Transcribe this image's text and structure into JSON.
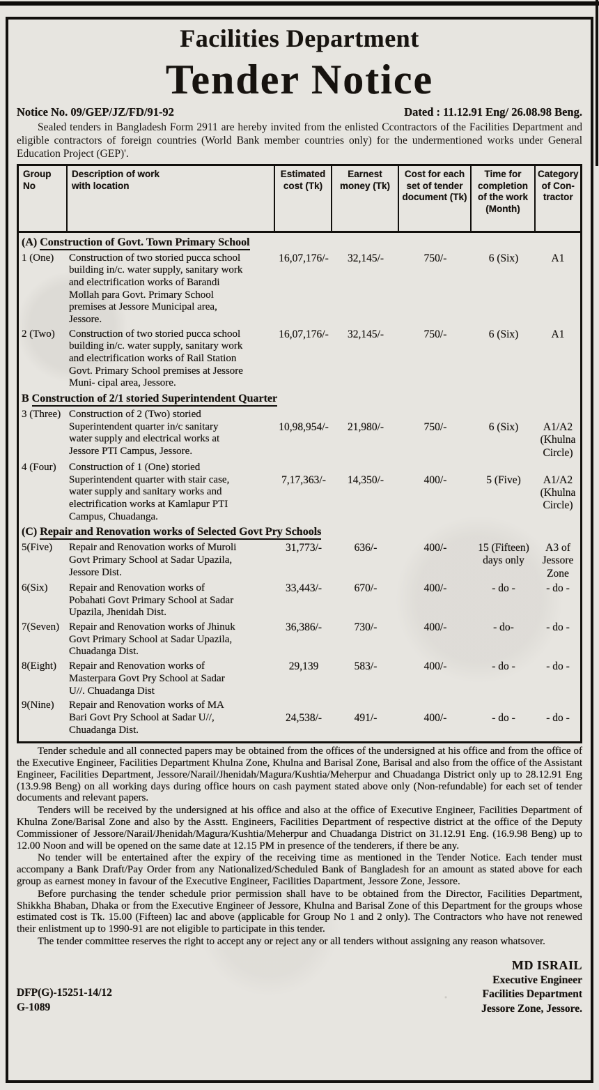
{
  "header": {
    "department": "Facilities Department",
    "title": "Tender Notice",
    "notice_no": "Notice No. 09/GEP/JZ/FD/91-92",
    "dated": "Dated : 11.12.91 Eng/ 26.08.98 Beng.",
    "intro": "Sealed tenders in Bangladesh Form 2911 are hereby invited from the enlisted Ccontractors of the Facilities Department and eligible contractors of foreign countries (World Bank member countries only) for the undermentioned works under General Education Project (GEP)'."
  },
  "table": {
    "headers": [
      "Group No",
      "Description of work with location",
      "Estimated cost (Tk)",
      "Earnest money (Tk)",
      "Cost for each set of tender document (Tk)",
      "Time for completion of the work (Month)",
      "Category of Con- tractor"
    ],
    "sections": [
      {
        "prefix": "(A)",
        "heading": "Construction of Govt. Town Primary School",
        "rows": [
          {
            "no": "1 (One)",
            "desc": "Construction of two storied pucca school building in/c. water supply, sanitary work and electrification works of Barandi Mollah para Govt. Primary School premises at Jessore Municipal area, Jessore.",
            "est": "16,07,176/-",
            "earnest": "32,145/-",
            "doc_cost": "750/-",
            "time": "6 (Six)",
            "category": "A1",
            "offset": false
          },
          {
            "no": "2 (Two)",
            "desc": "Construction of two storied pucca school building in/c. water supply, sanitary work and electrification works of Rail Station Govt. Primary School premises at Jessore Muni- cipal area, Jessore.",
            "est": "16,07,176/-",
            "earnest": "32,145/-",
            "doc_cost": "750/-",
            "time": "6 (Six)",
            "category": "A1",
            "offset": false
          }
        ]
      },
      {
        "prefix": "B",
        "heading": "Construction of 2/1 storied Superintendent Quarter",
        "rows": [
          {
            "no": "3 (Three)",
            "desc": "Construction of 2 (Two) storied Superintendent quarter in/c sanitary water supply and electrical works at Jessore PTI Campus, Jessore.",
            "est": "10,98,954/-",
            "earnest": "21,980/-",
            "doc_cost": "750/-",
            "time": "6 (Six)",
            "category": "A1/A2 (Khulna Circle)",
            "offset": true
          },
          {
            "no": "4 (Four)",
            "desc": "Construction of 1 (One) storied Superintendent quarter with stair case, water supply and sanitary works and electrification works at Kamlapur PTI Campus, Chuadanga.",
            "est": "7,17,363/-",
            "earnest": "14,350/-",
            "doc_cost": "400/-",
            "time": "5 (Five)",
            "category": "A1/A2 (Khulna Circle)",
            "offset": true
          }
        ]
      },
      {
        "prefix": "(C)",
        "heading": "Repair and Renovation works of Selected Govt Pry Schools",
        "rows": [
          {
            "no": "5(Five)",
            "desc": "Repair and Renovation works of Muroli Govt Primary School at Sadar Upazila, Jessore Dist.",
            "est": "31,773/-",
            "earnest": "636/-",
            "doc_cost": "400/-",
            "time": "15 (Fifteen) days only",
            "category": "A3 of Jessore Zone",
            "offset": false
          },
          {
            "no": "6(Six)",
            "desc": "Repair and Renovation works of Pobahati Govt Primary School at Sadar Upazila, Jhenidah Dist.",
            "est": "33,443/-",
            "earnest": "670/-",
            "doc_cost": "400/-",
            "time": "- do -",
            "category": "- do -",
            "offset": false
          },
          {
            "no": "7(Seven)",
            "desc": "Repair and Renovation works of Jhinuk Govt Primary School at Sadar Upazila, Chuadanga Dist.",
            "est": "36,386/-",
            "earnest": "730/-",
            "doc_cost": "400/-",
            "time": "- do-",
            "category": "- do -",
            "offset": false
          },
          {
            "no": "8(Eight)",
            "desc": "Repair and Renovation works of Masterpara Govt Pry School at Sadar U//. Chuadanga Dist",
            "est": "29,139",
            "earnest": "583/-",
            "doc_cost": "400/-",
            "time": "- do -",
            "category": "- do -",
            "offset": false
          },
          {
            "no": "9(Nine)",
            "desc": "Repair and Renovation works of MA Bari Govt Pry School at Sadar U//, Chuadanga Dist.",
            "est": "24,538/-",
            "earnest": "491/-",
            "doc_cost": "400/-",
            "time": "- do -",
            "category": "- do -",
            "offset": true
          }
        ]
      }
    ]
  },
  "paragraphs": [
    "Tender schedule and all connected papers may be obtained from the offices of the undersigned at his office and from the office of the Executive Engineer, Facilities Department Khulna Zone, Khulna and Barisal Zone, Barisal and also from the office of the Assistant Engineer, Facilities Department, Jessore/Narail/Jhenidah/Magura/Kushtia/Meherpur and Chuadanga District only up to 28.12.91 Eng (13.9.98 Beng) on all working days during office hours on cash payment stated above only (Non-refundable) for each set of tender documents and relevant papers.",
    "Tenders will be received by the undersigned at his office and also at the office of Executive Engineer, Facilities Department of Khulna Zone/Barisal Zone and also by the Asstt. Engineers, Facilities Department of respective district at the office of the Deputy Commissioner of Jessore/Narail/Jhenidah/Magura/Kushtia/Meherpur and Chuadanga District on 31.12.91 Eng. (16.9.98 Beng) up to 12.00 Noon and will be opened on the same date at 12.15 PM in presence of the tenderers, if there be any.",
    "No tender will be entertained after the expiry of the receiving time as mentioned in the Tender Notice. Each tender must accompany a Bank Draft/Pay Order from any Nationalized/Scheduled Bank of Bangladesh for an amount as stated above for each group as earnest money in favour of the Executive Engineer, Facilities Dapartment, Jessore Zone, Jessore.",
    "Before purchasing the tender schedule prior permission shall have to be obtained from the Director, Facilities Department, Shikkha Bhaban, Dhaka or from the Executive Engineer of Jessore, Khulna and Barisal Zone of this Department for the groups whose estimated cost is Tk. 15.00 (Fifteen) lac and above (applicable for Group No 1 and 2 only). The Contractors who have not renewed their enlistment up to 1990-91 are not eligible to participate in this tender.",
    "The tender committee reserves the right to accept any or reject any or all tenders without assigning any reason whatsover."
  ],
  "signature": {
    "name": "MD ISRAIL",
    "role1": "Executive Engineer",
    "role2": "Facilities Department",
    "role3": "Jessore Zone, Jessore."
  },
  "footer": {
    "ref1": "DFP(G)-15251-14/12",
    "ref2": "G-1089"
  }
}
